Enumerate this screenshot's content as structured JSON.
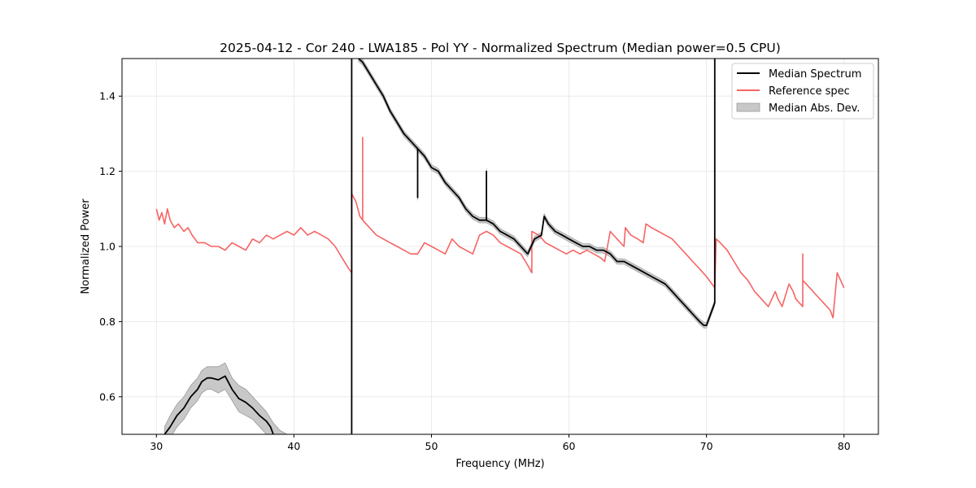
{
  "chart_data": {
    "type": "line",
    "title": "2025-04-12 - Cor 240 - LWA185 - Pol YY - Normalized Spectrum (Median power=0.5 CPU)",
    "xlabel": "Frequency (MHz)",
    "ylabel": "Normalized Power",
    "xlim": [
      27.5,
      82.5
    ],
    "ylim": [
      0.5,
      1.5
    ],
    "xticks": [
      30,
      40,
      50,
      60,
      70,
      80
    ],
    "yticks": [
      0.6,
      0.8,
      1.0,
      1.2,
      1.4
    ],
    "xtick_labels": [
      "30",
      "40",
      "50",
      "60",
      "70",
      "80"
    ],
    "ytick_labels": [
      "0.6",
      "0.8",
      "1.0",
      "1.2",
      "1.4"
    ],
    "grid": true,
    "legend_position": "top-right",
    "legend": [
      "Median Spectrum",
      "Reference spec",
      "Median Abs. Dev."
    ],
    "colors": {
      "median": "#000000",
      "reference": "#f76464",
      "mad_fill": "#c8c8c8",
      "mad_edge": "#9a9a9a"
    },
    "mad_halfwidth": 0.03,
    "series": [
      {
        "name": "Median Spectrum",
        "segments": [
          {
            "x": [
              30.6,
              31.0,
              31.5,
              32.0,
              32.5,
              33.0,
              33.3,
              33.7,
              34.0,
              34.5,
              35.0,
              35.5,
              36.0,
              36.5,
              37.0,
              37.5,
              38.0,
              38.3,
              38.5
            ],
            "y": [
              0.5,
              0.52,
              0.55,
              0.57,
              0.6,
              0.62,
              0.64,
              0.65,
              0.65,
              0.645,
              0.655,
              0.62,
              0.595,
              0.585,
              0.57,
              0.55,
              0.535,
              0.52,
              0.5
            ]
          },
          {
            "x": [
              44.2,
              44.2,
              44.25
            ],
            "y": [
              0.5,
              1.5,
              1.5
            ]
          },
          {
            "x": [
              44.7,
              45.0,
              45.5,
              46.0,
              46.5,
              47.0,
              47.5,
              48.0,
              48.5,
              49.0,
              49.0,
              49.0,
              49.5,
              50.0,
              50.5,
              51.0,
              51.5,
              52.0,
              52.5,
              53.0,
              53.5,
              54.0,
              54.0,
              54.0,
              54.5,
              55.0,
              55.5,
              56.0,
              56.5,
              57.0,
              57.5,
              58.0,
              58.2,
              58.5,
              59.0,
              59.5,
              60.0,
              60.5,
              61.0,
              61.5,
              62.0,
              62.5,
              63.0,
              63.5,
              64.0,
              64.5,
              65.0,
              65.5,
              66.0,
              66.5,
              67.0,
              67.5,
              68.0,
              68.5,
              69.0,
              69.5,
              69.8,
              70.0,
              70.3,
              70.6,
              70.6,
              70.6
            ],
            "y": [
              1.5,
              1.49,
              1.46,
              1.43,
              1.4,
              1.36,
              1.33,
              1.3,
              1.28,
              1.26,
              1.13,
              1.26,
              1.24,
              1.21,
              1.2,
              1.17,
              1.15,
              1.13,
              1.1,
              1.08,
              1.07,
              1.07,
              1.2,
              1.07,
              1.06,
              1.04,
              1.03,
              1.02,
              1.0,
              0.98,
              1.02,
              1.03,
              1.08,
              1.06,
              1.04,
              1.03,
              1.02,
              1.01,
              1.0,
              1.0,
              0.99,
              0.99,
              0.98,
              0.96,
              0.96,
              0.95,
              0.94,
              0.93,
              0.92,
              0.91,
              0.9,
              0.88,
              0.86,
              0.84,
              0.82,
              0.8,
              0.79,
              0.79,
              0.82,
              0.85,
              1.1,
              1.5
            ]
          }
        ]
      },
      {
        "name": "Reference spec",
        "segments": [
          {
            "x": [
              30.0,
              30.2,
              30.4,
              30.6,
              30.8,
              31.0,
              31.3,
              31.6,
              32.0,
              32.3,
              32.6,
              33.0,
              33.5,
              34.0,
              34.5,
              35.0,
              35.5,
              36.0,
              36.5,
              37.0,
              37.5,
              38.0,
              38.5,
              39.0,
              39.5,
              40.0,
              40.5,
              41.0,
              41.5,
              42.0,
              42.5,
              43.0,
              43.5,
              44.0,
              44.2,
              44.2,
              44.5,
              44.8,
              45.0,
              45.0,
              45.0,
              45.5,
              46.0,
              46.5,
              47.0,
              47.5,
              48.0,
              48.5,
              49.0,
              49.5,
              50.0,
              50.5,
              51.0,
              51.5,
              52.0,
              52.5,
              53.0,
              53.5,
              54.0,
              54.5,
              55.0,
              55.5,
              56.0,
              56.5,
              57.0,
              57.3,
              57.3,
              57.8,
              58.3,
              58.8,
              59.3,
              59.8,
              60.3,
              60.8,
              61.3,
              61.8,
              62.3,
              62.6,
              63.0,
              63.5,
              64.0,
              64.1,
              64.5,
              65.0,
              65.4,
              65.6,
              66.0,
              66.5,
              67.0,
              67.5,
              68.0,
              68.5,
              69.0,
              69.5,
              70.0,
              70.6,
              70.7,
              71.0,
              71.5,
              72.0,
              72.5,
              73.0,
              73.5,
              74.0,
              74.5,
              75.0,
              75.2,
              75.5,
              76.0,
              76.3,
              76.5,
              77.0,
              77.0,
              77.0,
              77.5,
              78.0,
              78.5,
              79.0,
              79.2,
              79.5,
              80.0
            ],
            "y": [
              1.1,
              1.07,
              1.09,
              1.06,
              1.1,
              1.07,
              1.05,
              1.06,
              1.04,
              1.05,
              1.03,
              1.01,
              1.01,
              1.0,
              1.0,
              0.99,
              1.01,
              1.0,
              0.99,
              1.02,
              1.01,
              1.03,
              1.02,
              1.03,
              1.04,
              1.03,
              1.05,
              1.03,
              1.04,
              1.03,
              1.02,
              1.0,
              0.97,
              0.94,
              0.93,
              1.14,
              1.12,
              1.08,
              1.07,
              1.29,
              1.07,
              1.05,
              1.03,
              1.02,
              1.01,
              1.0,
              0.99,
              0.98,
              0.98,
              1.01,
              1.0,
              0.99,
              0.98,
              1.02,
              1.0,
              0.99,
              0.98,
              1.03,
              1.04,
              1.03,
              1.01,
              1.0,
              0.99,
              0.98,
              0.95,
              0.93,
              1.04,
              1.03,
              1.01,
              1.0,
              0.99,
              0.98,
              0.99,
              0.98,
              0.99,
              0.98,
              0.97,
              0.96,
              1.04,
              1.02,
              1.0,
              1.05,
              1.03,
              1.02,
              1.01,
              1.06,
              1.05,
              1.04,
              1.03,
              1.02,
              1.0,
              0.98,
              0.96,
              0.94,
              0.92,
              0.89,
              1.02,
              1.01,
              0.99,
              0.96,
              0.93,
              0.91,
              0.88,
              0.86,
              0.84,
              0.88,
              0.86,
              0.84,
              0.9,
              0.88,
              0.86,
              0.84,
              0.98,
              0.91,
              0.89,
              0.87,
              0.85,
              0.83,
              0.81,
              0.93,
              0.89
            ]
          }
        ]
      }
    ],
    "mad_band": [
      {
        "x": [
          30.6,
          31.0,
          31.5,
          32.0,
          32.5,
          33.0,
          33.3,
          33.7,
          34.0,
          34.5,
          35.0,
          35.5,
          36.0,
          36.5,
          37.0,
          37.5,
          38.0,
          38.5,
          39.0,
          39.5
        ],
        "lower": [
          0.48,
          0.49,
          0.52,
          0.54,
          0.57,
          0.59,
          0.61,
          0.62,
          0.62,
          0.61,
          0.62,
          0.59,
          0.56,
          0.55,
          0.54,
          0.52,
          0.5,
          0.49,
          0.48,
          0.47
        ],
        "upper": [
          0.52,
          0.55,
          0.58,
          0.6,
          0.63,
          0.65,
          0.67,
          0.68,
          0.68,
          0.68,
          0.69,
          0.65,
          0.63,
          0.62,
          0.6,
          0.58,
          0.56,
          0.53,
          0.51,
          0.5
        ]
      }
    ]
  }
}
